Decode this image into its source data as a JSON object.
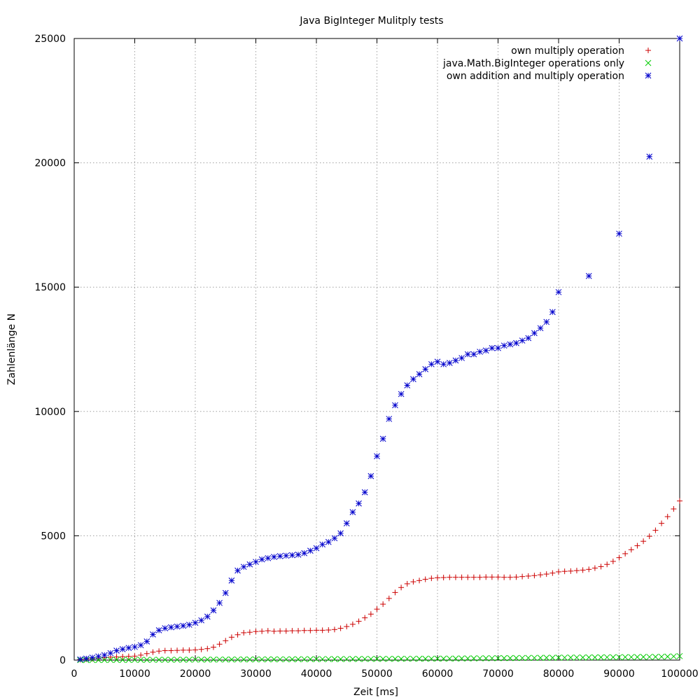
{
  "chart_data": {
    "type": "scatter",
    "title": "Java BigInteger Mulitply tests",
    "xlabel": "Zeit [ms]",
    "ylabel": "Zahlenlänge N",
    "xlim": [
      0,
      100000
    ],
    "ylim": [
      0,
      25000
    ],
    "xticks": [
      0,
      10000,
      20000,
      30000,
      40000,
      50000,
      60000,
      70000,
      80000,
      90000,
      100000
    ],
    "yticks": [
      0,
      5000,
      10000,
      15000,
      20000,
      25000
    ],
    "grid": true,
    "legend_position": "top-right",
    "series": [
      {
        "name": "own multiply operation",
        "color": "#cc0000",
        "marker": "plus",
        "x": [
          1000,
          2000,
          3000,
          4000,
          5000,
          6000,
          7000,
          8000,
          9000,
          10000,
          11000,
          12000,
          13000,
          14000,
          15000,
          16000,
          17000,
          18000,
          19000,
          20000,
          21000,
          22000,
          23000,
          24000,
          25000,
          26000,
          27000,
          28000,
          29000,
          30000,
          31000,
          32000,
          33000,
          34000,
          35000,
          36000,
          37000,
          38000,
          39000,
          40000,
          41000,
          42000,
          43000,
          44000,
          45000,
          46000,
          47000,
          48000,
          49000,
          50000,
          51000,
          52000,
          53000,
          54000,
          55000,
          56000,
          57000,
          58000,
          59000,
          60000,
          61000,
          62000,
          63000,
          64000,
          65000,
          66000,
          67000,
          68000,
          69000,
          70000,
          71000,
          72000,
          73000,
          74000,
          75000,
          76000,
          77000,
          78000,
          79000,
          80000,
          81000,
          82000,
          83000,
          84000,
          85000,
          86000,
          87000,
          88000,
          89000,
          90000,
          91000,
          92000,
          93000,
          94000,
          95000,
          96000,
          97000,
          98000,
          99000,
          100000
        ],
        "y": [
          20,
          40,
          60,
          80,
          100,
          120,
          130,
          140,
          150,
          160,
          200,
          260,
          320,
          360,
          380,
          380,
          390,
          400,
          400,
          410,
          430,
          460,
          520,
          640,
          780,
          920,
          1020,
          1100,
          1120,
          1150,
          1160,
          1180,
          1160,
          1170,
          1170,
          1180,
          1180,
          1190,
          1190,
          1200,
          1200,
          1210,
          1230,
          1280,
          1350,
          1440,
          1560,
          1700,
          1850,
          2050,
          2250,
          2480,
          2720,
          2920,
          3070,
          3150,
          3200,
          3250,
          3290,
          3310,
          3320,
          3330,
          3330,
          3330,
          3330,
          3330,
          3330,
          3340,
          3340,
          3340,
          3330,
          3330,
          3340,
          3360,
          3380,
          3400,
          3430,
          3460,
          3500,
          3550,
          3570,
          3580,
          3600,
          3620,
          3650,
          3700,
          3760,
          3850,
          3970,
          4120,
          4280,
          4440,
          4600,
          4780,
          4980,
          5220,
          5500,
          5770,
          6080,
          6400
        ]
      },
      {
        "name": "java.Math.BigInteger operations only",
        "color": "#00cc00",
        "marker": "x",
        "x": [
          1000,
          2000,
          3000,
          4000,
          5000,
          6000,
          7000,
          8000,
          9000,
          10000,
          11000,
          12000,
          13000,
          14000,
          15000,
          16000,
          17000,
          18000,
          19000,
          20000,
          21000,
          22000,
          23000,
          24000,
          25000,
          26000,
          27000,
          28000,
          29000,
          30000,
          31000,
          32000,
          33000,
          34000,
          35000,
          36000,
          37000,
          38000,
          39000,
          40000,
          41000,
          42000,
          43000,
          44000,
          45000,
          46000,
          47000,
          48000,
          49000,
          50000,
          51000,
          52000,
          53000,
          54000,
          55000,
          56000,
          57000,
          58000,
          59000,
          60000,
          61000,
          62000,
          63000,
          64000,
          65000,
          66000,
          67000,
          68000,
          69000,
          70000,
          71000,
          72000,
          73000,
          74000,
          75000,
          76000,
          77000,
          78000,
          79000,
          80000,
          81000,
          82000,
          83000,
          84000,
          85000,
          86000,
          87000,
          88000,
          89000,
          90000,
          91000,
          92000,
          93000,
          94000,
          95000,
          96000,
          97000,
          98000,
          99000,
          100000
        ],
        "y": [
          0,
          1,
          2,
          3,
          4,
          5,
          6,
          7,
          8,
          9,
          10,
          11,
          12,
          13,
          14,
          15,
          16,
          17,
          18,
          19,
          20,
          21,
          22,
          23,
          24,
          25,
          26,
          27,
          28,
          29,
          30,
          31,
          32,
          33,
          34,
          35,
          36,
          37,
          38,
          39,
          40,
          41,
          42,
          43,
          44,
          45,
          46,
          47,
          48,
          49,
          50,
          51,
          52,
          53,
          54,
          55,
          56,
          57,
          58,
          59,
          60,
          62,
          64,
          66,
          68,
          70,
          72,
          74,
          76,
          78,
          80,
          82,
          84,
          86,
          88,
          90,
          92,
          94,
          96,
          98,
          100,
          102,
          104,
          106,
          108,
          110,
          112,
          114,
          116,
          118,
          120,
          122,
          124,
          126,
          128,
          130,
          135,
          140,
          150,
          160
        ]
      },
      {
        "name": "own addition and multiply operation",
        "color": "#0000cc",
        "marker": "star",
        "x": [
          1000,
          2000,
          3000,
          4000,
          5000,
          6000,
          7000,
          8000,
          9000,
          10000,
          11000,
          12000,
          13000,
          14000,
          15000,
          16000,
          17000,
          18000,
          19000,
          20000,
          21000,
          22000,
          23000,
          24000,
          25000,
          26000,
          27000,
          28000,
          29000,
          30000,
          31000,
          32000,
          33000,
          34000,
          35000,
          36000,
          37000,
          38000,
          39000,
          40000,
          41000,
          42000,
          43000,
          44000,
          45000,
          46000,
          47000,
          48000,
          49000,
          50000,
          51000,
          52000,
          53000,
          54000,
          55000,
          56000,
          57000,
          58000,
          59000,
          60000,
          61000,
          62000,
          63000,
          64000,
          65000,
          66000,
          67000,
          68000,
          69000,
          70000,
          71000,
          72000,
          73000,
          74000,
          75000,
          76000,
          77000,
          78000,
          79000,
          80000,
          85000,
          90000,
          95000,
          100000
        ],
        "y": [
          30,
          60,
          100,
          150,
          200,
          280,
          380,
          440,
          490,
          530,
          600,
          750,
          1030,
          1200,
          1280,
          1320,
          1350,
          1380,
          1420,
          1500,
          1600,
          1750,
          2000,
          2300,
          2700,
          3200,
          3600,
          3750,
          3850,
          3950,
          4050,
          4100,
          4150,
          4180,
          4200,
          4220,
          4240,
          4300,
          4400,
          4500,
          4650,
          4750,
          4900,
          5100,
          5500,
          5950,
          6300,
          6750,
          7400,
          8200,
          8900,
          9700,
          10250,
          10700,
          11050,
          11300,
          11500,
          11700,
          11900,
          12000,
          11900,
          11950,
          12050,
          12150,
          12300,
          12300,
          12400,
          12450,
          12550,
          12550,
          12650,
          12700,
          12750,
          12850,
          12950,
          13150,
          13350,
          13600,
          14000,
          14800,
          15450,
          17150,
          20250,
          25000
        ]
      }
    ]
  }
}
